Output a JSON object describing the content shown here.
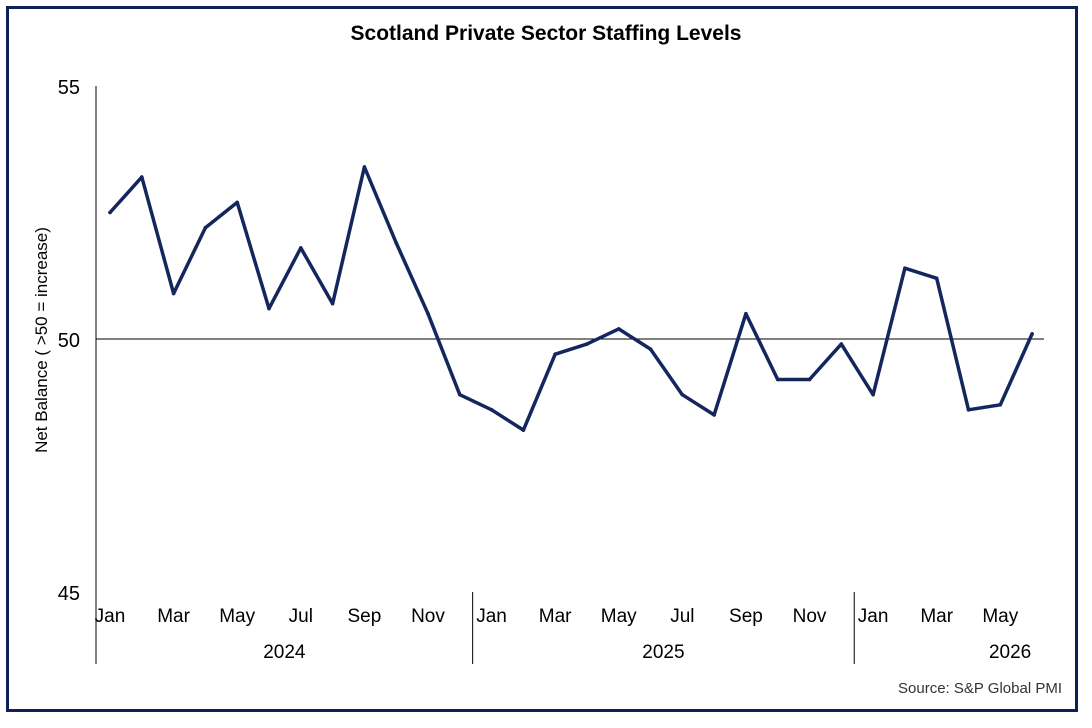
{
  "chart_data": {
    "type": "line",
    "title": "Scotland Private Sector Staffing Levels",
    "ylabel": "Net Balance ( >50 = increase)",
    "xlabel": "",
    "source": "Source: S&P Global PMI",
    "ylim": [
      45,
      55
    ],
    "yticks": [
      45,
      50,
      55
    ],
    "reference_line": 50,
    "line_color": "#14265e",
    "years": [
      {
        "label": "2024",
        "start": 0,
        "count": 12
      },
      {
        "label": "2025",
        "start": 12,
        "count": 12
      },
      {
        "label": "2026",
        "start": 24,
        "count": 6
      }
    ],
    "month_labels": [
      "Jan",
      "",
      "Mar",
      "",
      "May",
      "",
      "Jul",
      "",
      "Sep",
      "",
      "Nov",
      "",
      "Jan",
      "",
      "Mar",
      "",
      "May",
      "",
      "Jul",
      "",
      "Sep",
      "",
      "Nov",
      "",
      "Jan",
      "",
      "Mar",
      "",
      "May",
      ""
    ],
    "series": [
      {
        "values": [
          52.5,
          53.2,
          50.9,
          52.2,
          52.7,
          50.6,
          51.8,
          50.7,
          53.4,
          51.9,
          50.5,
          48.9,
          48.6,
          48.2,
          49.7,
          49.9,
          50.2,
          49.8,
          48.9,
          48.5,
          50.5,
          49.2,
          49.2,
          49.9,
          48.9,
          51.4,
          51.2,
          48.6,
          48.7,
          50.1
        ]
      }
    ]
  }
}
